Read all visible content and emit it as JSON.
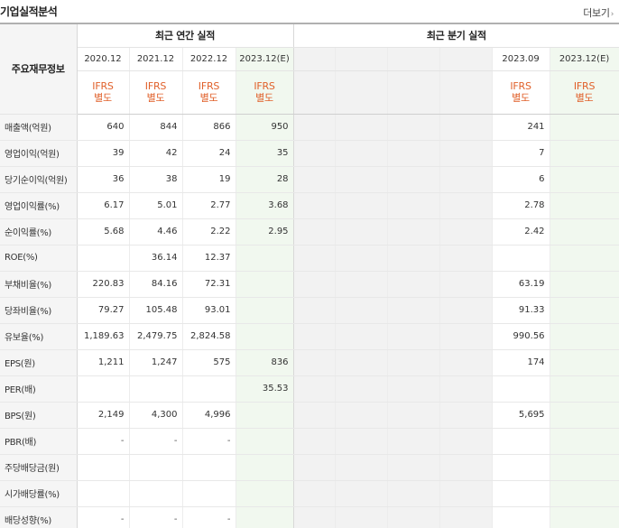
{
  "header": {
    "title": "기업실적분석",
    "more_label": "더보기",
    "more_chevron": "›"
  },
  "table": {
    "corner_label": "주요재무정보",
    "group_annual": "최근 연간 실적",
    "group_quarterly": "최근 분기 실적",
    "annual_periods": [
      "2020.12",
      "2021.12",
      "2022.12",
      "2023.12(E)"
    ],
    "quarter_periods": [
      "",
      "",
      "",
      "",
      "2023.09",
      "2023.12(E)"
    ],
    "ifrs_line1": "IFRS",
    "ifrs_line2": "별도",
    "rows": [
      {
        "label": "매출액(억원)",
        "annual": [
          "640",
          "844",
          "866",
          "950"
        ],
        "quarterly": [
          "",
          "",
          "",
          "",
          "241",
          ""
        ]
      },
      {
        "label": "영업이익(억원)",
        "annual": [
          "39",
          "42",
          "24",
          "35"
        ],
        "quarterly": [
          "",
          "",
          "",
          "",
          "7",
          ""
        ]
      },
      {
        "label": "당기순이익(억원)",
        "annual": [
          "36",
          "38",
          "19",
          "28"
        ],
        "quarterly": [
          "",
          "",
          "",
          "",
          "6",
          ""
        ]
      },
      {
        "label": "영업이익률(%)",
        "annual": [
          "6.17",
          "5.01",
          "2.77",
          "3.68"
        ],
        "quarterly": [
          "",
          "",
          "",
          "",
          "2.78",
          ""
        ]
      },
      {
        "label": "순이익률(%)",
        "annual": [
          "5.68",
          "4.46",
          "2.22",
          "2.95"
        ],
        "quarterly": [
          "",
          "",
          "",
          "",
          "2.42",
          ""
        ]
      },
      {
        "label": "ROE(%)",
        "annual": [
          "",
          "36.14",
          "12.37",
          ""
        ],
        "quarterly": [
          "",
          "",
          "",
          "",
          "",
          ""
        ]
      },
      {
        "label": "부채비율(%)",
        "annual": [
          "220.83",
          "84.16",
          "72.31",
          ""
        ],
        "quarterly": [
          "",
          "",
          "",
          "",
          "63.19",
          ""
        ]
      },
      {
        "label": "당좌비율(%)",
        "annual": [
          "79.27",
          "105.48",
          "93.01",
          ""
        ],
        "quarterly": [
          "",
          "",
          "",
          "",
          "91.33",
          ""
        ]
      },
      {
        "label": "유보율(%)",
        "annual": [
          "1,189.63",
          "2,479.75",
          "2,824.58",
          ""
        ],
        "quarterly": [
          "",
          "",
          "",
          "",
          "990.56",
          ""
        ]
      },
      {
        "label": "EPS(원)",
        "annual": [
          "1,211",
          "1,247",
          "575",
          "836"
        ],
        "quarterly": [
          "",
          "",
          "",
          "",
          "174",
          ""
        ]
      },
      {
        "label": "PER(배)",
        "annual": [
          "",
          "",
          "",
          "35.53"
        ],
        "quarterly": [
          "",
          "",
          "",
          "",
          "",
          ""
        ]
      },
      {
        "label": "BPS(원)",
        "annual": [
          "2,149",
          "4,300",
          "4,996",
          ""
        ],
        "quarterly": [
          "",
          "",
          "",
          "",
          "5,695",
          ""
        ]
      },
      {
        "label": "PBR(배)",
        "annual": [
          "-",
          "-",
          "-",
          ""
        ],
        "quarterly": [
          "",
          "",
          "",
          "",
          "",
          ""
        ]
      },
      {
        "label": "주당배당금(원)",
        "annual": [
          "",
          "",
          "",
          ""
        ],
        "quarterly": [
          "",
          "",
          "",
          "",
          "",
          ""
        ]
      },
      {
        "label": "시가배당률(%)",
        "annual": [
          "",
          "",
          "",
          ""
        ],
        "quarterly": [
          "",
          "",
          "",
          "",
          "",
          ""
        ]
      },
      {
        "label": "배당성향(%)",
        "annual": [
          "-",
          "-",
          "-",
          ""
        ],
        "quarterly": [
          "",
          "",
          "",
          "",
          "",
          ""
        ]
      }
    ]
  },
  "colors": {
    "ifrs_text": "#e0602a",
    "label_bg": "#f5f5f5",
    "quarter_bg": "#f2f2f2",
    "estimate_bg": "#f1f8ef"
  }
}
